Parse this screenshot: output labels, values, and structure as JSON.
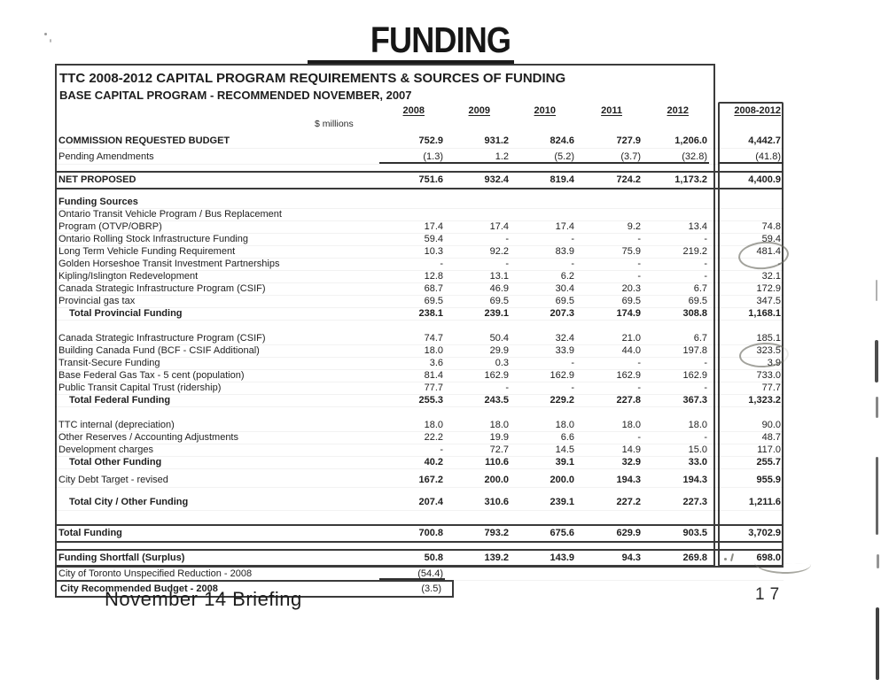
{
  "page": {
    "title": "FUNDING",
    "footer_left": "November 14 Briefing",
    "page_number": "17"
  },
  "table": {
    "title1": "TTC 2008-2012 CAPITAL PROGRAM REQUIREMENTS & SOURCES OF FUNDING",
    "title2": "BASE CAPITAL PROGRAM - RECOMMENDED NOVEMBER, 2007",
    "unit_note": "$ millions",
    "columns": [
      "2008",
      "2009",
      "2010",
      "2011",
      "2012"
    ],
    "total_column": "2008-2012",
    "rows": [
      {
        "label": "COMMISSION REQUESTED BUDGET",
        "v": [
          "752.9",
          "931.2",
          "824.6",
          "727.9",
          "1,206.0"
        ],
        "sum": "4,442.7",
        "cls": "r h15 mt5 bold"
      },
      {
        "label": "Pending Amendments",
        "v": [
          "(1.3)",
          "1.2",
          "(5.2)",
          "(3.7)",
          "(32.8)"
        ],
        "sum": "(41.8)",
        "cls": "r h15 mt3 uvals"
      },
      {
        "label": "NET PROPOSED",
        "v": [
          "751.6",
          "932.4",
          "819.4",
          "724.2",
          "1,173.2"
        ],
        "sum": "4,400.9",
        "cls": "r bold boxed tall mt8"
      },
      {
        "label": "Funding Sources",
        "v": [
          "",
          "",
          "",
          "",
          ""
        ],
        "sum": "",
        "cls": "r bold mt7"
      },
      {
        "label": "Ontario Transit Vehicle Program / Bus Replacement",
        "v": [
          "",
          "",
          "",
          "",
          ""
        ],
        "sum": "",
        "cls": "r"
      },
      {
        "label": "Program (OTVP/OBRP)",
        "v": [
          "17.4",
          "17.4",
          "17.4",
          "9.2",
          "13.4"
        ],
        "sum": "74.8",
        "cls": "r"
      },
      {
        "label": "Ontario Rolling Stock Infrastructure Funding",
        "v": [
          "59.4",
          "-",
          "-",
          "-",
          "-"
        ],
        "sum": "59.4",
        "cls": "r"
      },
      {
        "label": "Long Term Vehicle Funding Requirement",
        "v": [
          "10.3",
          "92.2",
          "83.9",
          "75.9",
          "219.2"
        ],
        "sum": "481.4",
        "cls": "r"
      },
      {
        "label": "Golden Horseshoe Transit Investment Partnerships",
        "v": [
          "-",
          "-",
          "-",
          "-",
          "-"
        ],
        "sum": "-",
        "cls": "r"
      },
      {
        "label": "Kipling/Islington Redevelopment",
        "v": [
          "12.8",
          "13.1",
          "6.2",
          "-",
          "-"
        ],
        "sum": "32.1",
        "cls": "r"
      },
      {
        "label": "Canada Strategic Infrastructure Program (CSIF)",
        "v": [
          "68.7",
          "46.9",
          "30.4",
          "20.3",
          "6.7"
        ],
        "sum": "172.9",
        "cls": "r"
      },
      {
        "label": "Provincial gas tax",
        "v": [
          "69.5",
          "69.5",
          "69.5",
          "69.5",
          "69.5"
        ],
        "sum": "347.5",
        "cls": "r"
      },
      {
        "label": "Total Provincial Funding",
        "v": [
          "238.1",
          "239.1",
          "207.3",
          "174.9",
          "308.8"
        ],
        "sum": "1,168.1",
        "cls": "r bold ind"
      },
      {
        "label": "Canada Strategic Infrastructure Program (CSIF)",
        "v": [
          "74.7",
          "50.4",
          "32.4",
          "21.0",
          "6.7"
        ],
        "sum": "185.1",
        "cls": "r mt14"
      },
      {
        "label": "Building Canada Fund (BCF - CSIF Additional)",
        "v": [
          "18.0",
          "29.9",
          "33.9",
          "44.0",
          "197.8"
        ],
        "sum": "323.5",
        "cls": "r"
      },
      {
        "label": "Transit-Secure Funding",
        "v": [
          "3.6",
          "0.3",
          "-",
          "-",
          "-"
        ],
        "sum": "3.9",
        "cls": "r"
      },
      {
        "label": "Base Federal Gas Tax - 5 cent (population)",
        "v": [
          "81.4",
          "162.9",
          "162.9",
          "162.9",
          "162.9"
        ],
        "sum": "733.0",
        "cls": "r"
      },
      {
        "label": "Public Transit Capital Trust (ridership)",
        "v": [
          "77.7",
          "-",
          "-",
          "-",
          "-"
        ],
        "sum": "77.7",
        "cls": "r"
      },
      {
        "label": "Total Federal Funding",
        "v": [
          "255.3",
          "243.5",
          "229.2",
          "227.8",
          "367.3"
        ],
        "sum": "1,323.2",
        "cls": "r bold ind"
      },
      {
        "label": "TTC internal (depreciation)",
        "v": [
          "18.0",
          "18.0",
          "18.0",
          "18.0",
          "18.0"
        ],
        "sum": "90.0",
        "cls": "r mt14"
      },
      {
        "label": "Other Reserves / Accounting Adjustments",
        "v": [
          "22.2",
          "19.9",
          "6.6",
          "-",
          "-"
        ],
        "sum": "48.7",
        "cls": "r"
      },
      {
        "label": "Development charges",
        "v": [
          "-",
          "72.7",
          "14.5",
          "14.9",
          "15.0"
        ],
        "sum": "117.0",
        "cls": "r"
      },
      {
        "label": "Total Other Funding",
        "v": [
          "40.2",
          "110.6",
          "39.1",
          "32.9",
          "33.0"
        ],
        "sum": "255.7",
        "cls": "r bold ind"
      },
      {
        "label": "City Debt Target - revised",
        "v": [
          "167.2",
          "200.0",
          "200.0",
          "194.3",
          "194.3"
        ],
        "sum": "955.9",
        "cls": "r h15 valbold mt6"
      },
      {
        "label": "Total City / Other Funding",
        "v": [
          "207.4",
          "310.6",
          "239.1",
          "227.2",
          "227.3"
        ],
        "sum": "1,211.6",
        "cls": "r bold ind tall mt9"
      },
      {
        "label": "Total Funding",
        "v": [
          "700.8",
          "793.2",
          "675.6",
          "629.9",
          "903.5"
        ],
        "sum": "3,702.9",
        "cls": "r bold boxed tall mt16"
      },
      {
        "label": "Funding Shortfall (Surplus)",
        "v": [
          "50.8",
          "139.2",
          "143.9",
          "94.3",
          "269.8"
        ],
        "sum": "698.0",
        "cls": "r bold boxed tall mt7"
      },
      {
        "label": "City of Toronto Unspecified Reduction - 2008",
        "v": [
          "(54.4)",
          "",
          "",
          "",
          ""
        ],
        "sum": "",
        "cls": "r uc1"
      }
    ],
    "last_row": {
      "label": "City Recommended Budget - 2008",
      "value": "(3.5)"
    }
  },
  "annotations": {
    "pen_circled_values": [
      "481.4",
      "323.5"
    ],
    "pen_marked_value": "698.0"
  }
}
